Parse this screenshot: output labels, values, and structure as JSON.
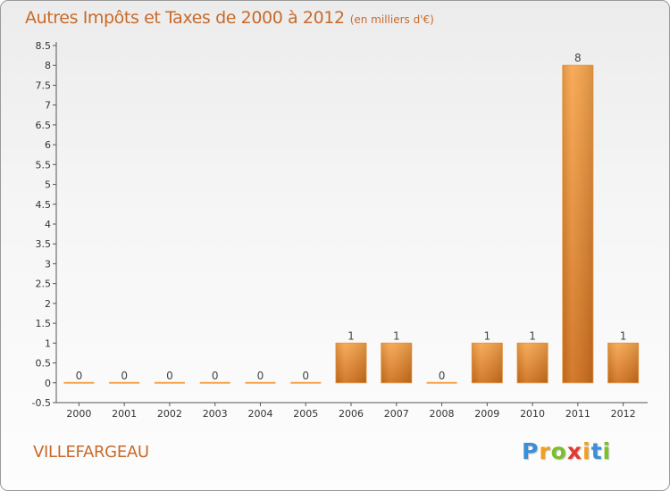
{
  "title": {
    "main": "Autres Impôts et Taxes de 2000 à 2012",
    "unit": "(en milliers d'€)"
  },
  "commune": "VILLEFARGEAU",
  "logo": {
    "letters": [
      "P",
      "r",
      "o",
      "x",
      "i",
      "t",
      "i"
    ],
    "colors": [
      "#3a8fd8",
      "#f0a020",
      "#7cbf2c",
      "#e23b2e",
      "#f0a020",
      "#3a8fd8",
      "#7cbf2c"
    ]
  },
  "colors": {
    "title": "#c76a2a",
    "bar_light": "#f7a54c",
    "bar_dark": "#cf6f1c",
    "axis": "#555555",
    "grid": "#cccccc"
  },
  "chart_data": {
    "type": "bar",
    "categories": [
      "2000",
      "2001",
      "2002",
      "2003",
      "2004",
      "2005",
      "2006",
      "2007",
      "2008",
      "2009",
      "2010",
      "2011",
      "2012"
    ],
    "values": [
      0,
      0,
      0,
      0,
      0,
      0,
      1,
      1,
      0,
      1,
      1,
      8,
      1
    ],
    "data_labels": [
      "0",
      "0",
      "0",
      "0",
      "0",
      "0",
      "1",
      "1",
      "0",
      "1",
      "1",
      "8",
      "1"
    ],
    "yticks": [
      "-0.5",
      "0",
      "0.5",
      "1",
      "1.5",
      "2",
      "2.5",
      "3",
      "3.5",
      "4",
      "4.5",
      "5",
      "5.5",
      "6",
      "6.5",
      "7",
      "7.5",
      "8",
      "8.5"
    ],
    "ylim": [
      -0.5,
      8.5
    ],
    "grid": false,
    "title": "Autres Impôts et Taxes de 2000 à 2012",
    "xlabel": "",
    "ylabel": ""
  }
}
